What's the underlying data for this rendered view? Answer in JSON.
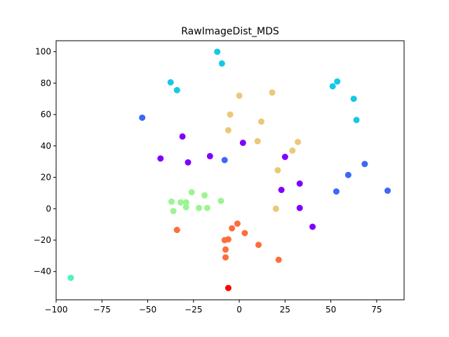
{
  "chart_data": {
    "type": "scatter",
    "title": "RawImageDist_MDS",
    "xlabel": "",
    "ylabel": "",
    "xlim": [
      -100,
      90
    ],
    "ylim": [
      -58,
      107
    ],
    "xticks": [
      -100,
      -75,
      -50,
      -25,
      0,
      25,
      50,
      75
    ],
    "yticks": [
      -40,
      -20,
      0,
      20,
      40,
      60,
      80,
      100
    ],
    "xtick_labels": [
      "−100",
      "−75",
      "−50",
      "−25",
      "0",
      "25",
      "50",
      "75"
    ],
    "ytick_labels": [
      "−40",
      "−20",
      "0",
      "20",
      "40",
      "60",
      "80",
      "100"
    ],
    "grid": false,
    "legend": "none",
    "groups": [
      {
        "color": "#8000ff",
        "points": [
          [
            -31,
            46
          ],
          [
            -43,
            32
          ],
          [
            -28,
            29.5
          ],
          [
            -16,
            33.5
          ],
          [
            2,
            42
          ],
          [
            25,
            33
          ],
          [
            23,
            12
          ],
          [
            33,
            16
          ],
          [
            33,
            0.5
          ],
          [
            40,
            -11.5
          ]
        ]
      },
      {
        "color": "#3c68f5",
        "points": [
          [
            -53,
            58
          ],
          [
            -8,
            31
          ],
          [
            68.5,
            28.5
          ],
          [
            59.5,
            21.5
          ],
          [
            53,
            11
          ],
          [
            81,
            11.5
          ]
        ]
      },
      {
        "color": "#14c8e6",
        "points": [
          [
            -12,
            100
          ],
          [
            -9.5,
            92.5
          ],
          [
            -37.5,
            80.5
          ],
          [
            -34,
            75.5
          ],
          [
            51,
            78
          ],
          [
            53.5,
            81
          ],
          [
            62.5,
            70
          ],
          [
            64,
            56.5
          ]
        ]
      },
      {
        "color": "#4ff5b6",
        "points": [
          [
            -92,
            -44
          ]
        ]
      },
      {
        "color": "#9af592",
        "points": [
          [
            -37,
            4.5
          ],
          [
            -36,
            -1.5
          ],
          [
            -32,
            4
          ],
          [
            -29,
            4
          ],
          [
            -29,
            1
          ],
          [
            -26,
            10.5
          ],
          [
            -22,
            0.5
          ],
          [
            -19,
            8.5
          ],
          [
            -17.5,
            0.5
          ],
          [
            -10,
            5
          ]
        ]
      },
      {
        "color": "#ebc877",
        "points": [
          [
            0,
            72
          ],
          [
            18,
            74
          ],
          [
            -5,
            60
          ],
          [
            12,
            55.5
          ],
          [
            -6,
            50
          ],
          [
            10,
            43
          ],
          [
            32,
            42.5
          ],
          [
            29,
            37
          ],
          [
            21,
            24.5
          ],
          [
            20,
            0
          ]
        ]
      },
      {
        "color": "#ff6d3a",
        "points": [
          [
            -34,
            -13.5
          ],
          [
            -1,
            -9.5
          ],
          [
            -4,
            -12.5
          ],
          [
            3,
            -15.5
          ],
          [
            -6,
            -19.5
          ],
          [
            -8,
            -20
          ],
          [
            -7.5,
            -26
          ],
          [
            -7.5,
            -31
          ],
          [
            10.5,
            -23
          ],
          [
            21.5,
            -32.5
          ]
        ]
      },
      {
        "color": "#ff0000",
        "points": [
          [
            -6,
            -50.5
          ]
        ]
      }
    ]
  }
}
